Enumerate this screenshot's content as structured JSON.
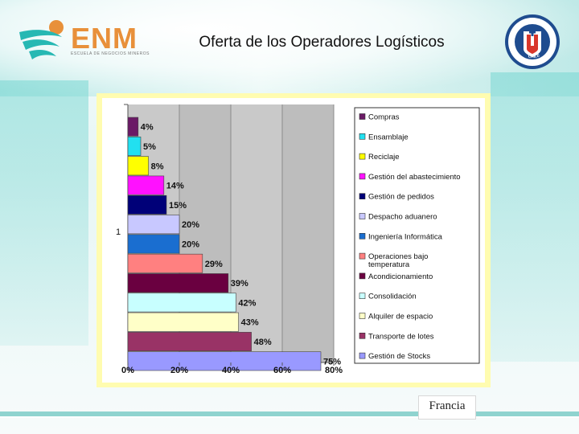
{
  "header": {
    "logo_text": "ENM",
    "logo_subtitle": "ESCUELA DE NEGOCIOS MINEROS",
    "title": "Oferta de los Operadores Logísticos",
    "seal_top_text": "UNIVERSIDAD CATÓLICA DEL NORTE",
    "seal_bottom_text": "CHILE"
  },
  "footer": {
    "source": "Francia"
  },
  "chart_data": {
    "type": "bar",
    "orientation": "horizontal",
    "categories": [
      "Compras",
      "Ensamblaje",
      "Reciclaje",
      "Gestión del abastecimiento",
      "Gestión de pedidos",
      "Despacho aduanero",
      "Ingeniería Informática",
      "Operaciones bajo temperatura",
      "Acondicionamiento",
      "Consolidación",
      "Alquiler de espacio",
      "Transporte de lotes",
      "Gestión de Stocks"
    ],
    "values": [
      4,
      5,
      8,
      14,
      15,
      20,
      20,
      29,
      39,
      42,
      43,
      48,
      75
    ],
    "value_labels": [
      "4%",
      "5%",
      "8%",
      "14%",
      "15%",
      "20%",
      "20%",
      "29%",
      "39%",
      "42%",
      "43%",
      "48%",
      "75%"
    ],
    "colors": [
      "#6b1a66",
      "#22e0f0",
      "#ffff00",
      "#ff11ff",
      "#000078",
      "#c8c8ff",
      "#1a6ed0",
      "#ff8080",
      "#6a0040",
      "#c8ffff",
      "#ffffc8",
      "#993366",
      "#9999ff"
    ],
    "y_category_label": "1",
    "xlim": [
      0,
      80
    ],
    "x_ticks": [
      0,
      20,
      40,
      60,
      80
    ],
    "x_tick_labels": [
      "0%",
      "20%",
      "40%",
      "60%",
      "80%"
    ],
    "grid": true,
    "legend_position": "right",
    "legend_order": [
      "Compras",
      "Ensamblaje",
      "Reciclaje",
      "Gestión del abastecimiento",
      "Gestión de pedidos",
      "Despacho aduanero",
      "Ingeniería Informática",
      "Operaciones bajo temperatura",
      "Acondicionamiento",
      "Consolidación",
      "Alquiler de espacio",
      "Transporte de lotes",
      "Gestión de Stocks"
    ]
  }
}
